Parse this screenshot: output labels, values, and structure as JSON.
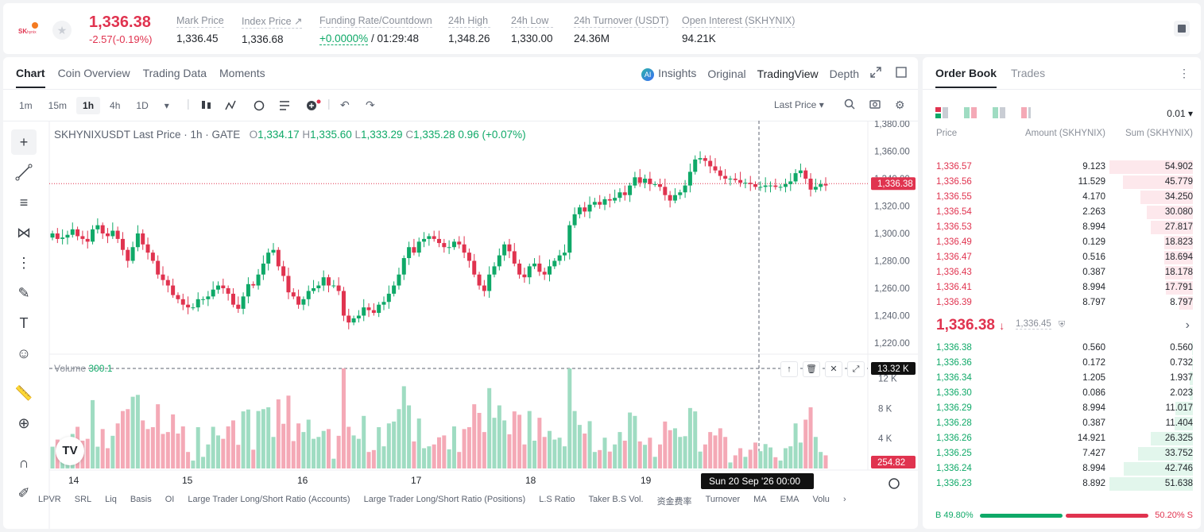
{
  "header": {
    "last_price": "1,336.38",
    "change": "-2.57(-0.19%)",
    "stats": [
      {
        "label": "Mark Price",
        "value": "1,336.45"
      },
      {
        "label": "Index Price ↗",
        "value": "1,336.68"
      },
      {
        "label": "Funding Rate/Countdown",
        "value_green": "+0.0000%",
        "value": " / 01:29:48"
      },
      {
        "label": "24h High",
        "value": "1,348.26"
      },
      {
        "label": "24h Low",
        "value": "1,330.00"
      },
      {
        "label": "24h Turnover (USDT)",
        "value": "24.36M"
      },
      {
        "label": "Open Interest (SKHYNIX)",
        "value": "94.21K"
      }
    ]
  },
  "chart_tabs": [
    "Chart",
    "Coin Overview",
    "Trading Data",
    "Moments"
  ],
  "view_tabs": {
    "insights": "Insights",
    "original": "Original",
    "tradingview": "TradingView",
    "depth": "Depth"
  },
  "timeframes": [
    "1m",
    "15m",
    "1h",
    "4h",
    "1D"
  ],
  "price_type": "Last Price",
  "legend": {
    "symbol": "SKHYNIXUSDT Last Price · 1h · GATE",
    "o": "1,334.17",
    "h": "1,335.60",
    "l": "1,333.29",
    "c": "1,335.28",
    "chg": "0.96 (+0.07%)"
  },
  "volume_legend": {
    "label": "Volume",
    "value": "300.1"
  },
  "price_axis": [
    "1,380.00",
    "1,360.00",
    "1,340.00",
    "1,320.00",
    "1,300.00",
    "1,280.00",
    "1,260.00",
    "1,240.00",
    "1,220.00"
  ],
  "volume_axis": [
    "12 K",
    "8 K",
    "4 K"
  ],
  "x_axis": [
    "14",
    "15",
    "16",
    "17",
    "18",
    "19"
  ],
  "price_badge": "1,336.38",
  "volume_badge": "13.32 K",
  "volume_last_badge": "254.82",
  "crosshair_time": "Sun 20 Sep '26   00:00",
  "bottom_indicators": [
    "LPVR",
    "SRL",
    "Liq",
    "Basis",
    "OI",
    "Large Trader Long/Short Ratio (Accounts)",
    "Large Trader Long/Short Ratio (Positions)",
    "L.S Ratio",
    "Taker B.S Vol.",
    "资金费率",
    "Turnover",
    "MA",
    "EMA",
    "Volu"
  ],
  "order_book": {
    "tabs": [
      "Order Book",
      "Trades"
    ],
    "precision": "0.01",
    "col_price": "Price",
    "col_amount": "Amount (SKHYNIX)",
    "col_sum": "Sum (SKHYNIX)",
    "asks": [
      {
        "p": "1,336.57",
        "a": "9.123",
        "s": "54.902",
        "d": 1.0
      },
      {
        "p": "1,336.56",
        "a": "11.529",
        "s": "45.779",
        "d": 0.834
      },
      {
        "p": "1,336.55",
        "a": "4.170",
        "s": "34.250",
        "d": 0.624
      },
      {
        "p": "1,336.54",
        "a": "2.263",
        "s": "30.080",
        "d": 0.548
      },
      {
        "p": "1,336.53",
        "a": "8.994",
        "s": "27.817",
        "d": 0.507
      },
      {
        "p": "1,336.49",
        "a": "0.129",
        "s": "18.823",
        "d": 0.343
      },
      {
        "p": "1,336.47",
        "a": "0.516",
        "s": "18.694",
        "d": 0.34
      },
      {
        "p": "1,336.43",
        "a": "0.387",
        "s": "18.178",
        "d": 0.331
      },
      {
        "p": "1,336.41",
        "a": "8.994",
        "s": "17.791",
        "d": 0.324
      },
      {
        "p": "1,336.39",
        "a": "8.797",
        "s": "8.797",
        "d": 0.16
      }
    ],
    "mid_price": "1,336.38",
    "mid_mark": "1,336.45",
    "bids": [
      {
        "p": "1,336.38",
        "a": "0.560",
        "s": "0.560",
        "d": 0.011
      },
      {
        "p": "1,336.36",
        "a": "0.172",
        "s": "0.732",
        "d": 0.014
      },
      {
        "p": "1,336.34",
        "a": "1.205",
        "s": "1.937",
        "d": 0.037
      },
      {
        "p": "1,336.30",
        "a": "0.086",
        "s": "2.023",
        "d": 0.039
      },
      {
        "p": "1,336.29",
        "a": "8.994",
        "s": "11.017",
        "d": 0.213
      },
      {
        "p": "1,336.28",
        "a": "0.387",
        "s": "11.404",
        "d": 0.22
      },
      {
        "p": "1,336.26",
        "a": "14.921",
        "s": "26.325",
        "d": 0.509
      },
      {
        "p": "1,336.25",
        "a": "7.427",
        "s": "33.752",
        "d": 0.653
      },
      {
        "p": "1,336.24",
        "a": "8.994",
        "s": "42.746",
        "d": 0.827
      },
      {
        "p": "1,336.23",
        "a": "8.892",
        "s": "51.638",
        "d": 1.0
      }
    ],
    "buy_ratio": "B 49.80%",
    "sell_ratio": "50.20% S",
    "buy_fraction": 0.498
  },
  "colors": {
    "up": "#0fa968",
    "down": "#e0334f",
    "up_vol": "#9fdcc2",
    "down_vol": "#f4a9b6"
  },
  "chart_data": {
    "type": "candlestick",
    "ylim": [
      1220,
      1380
    ],
    "volume_ylim": [
      0,
      13320
    ],
    "closes": [
      1300,
      1296,
      1297,
      1299,
      1303,
      1298,
      1296,
      1294,
      1303,
      1306,
      1300,
      1298,
      1302,
      1296,
      1288,
      1280,
      1290,
      1300,
      1292,
      1286,
      1280,
      1270,
      1266,
      1262,
      1255,
      1252,
      1248,
      1246,
      1246,
      1252,
      1252,
      1254,
      1259,
      1262,
      1260,
      1256,
      1248,
      1245,
      1254,
      1263,
      1262,
      1270,
      1278,
      1286,
      1288,
      1276,
      1269,
      1257,
      1254,
      1248,
      1252,
      1258,
      1260,
      1262,
      1268,
      1262,
      1262,
      1258,
      1240,
      1235,
      1238,
      1240,
      1246,
      1244,
      1242,
      1248,
      1250,
      1256,
      1262,
      1270,
      1282,
      1290,
      1286,
      1294,
      1296,
      1298,
      1296,
      1293,
      1290,
      1290,
      1294,
      1292,
      1286,
      1280,
      1270,
      1262,
      1258,
      1270,
      1276,
      1284,
      1292,
      1287,
      1278,
      1270,
      1268,
      1276,
      1278,
      1272,
      1270,
      1276,
      1280,
      1284,
      1286,
      1306,
      1314,
      1319,
      1316,
      1321,
      1323,
      1321,
      1325,
      1324,
      1326,
      1330,
      1328,
      1335,
      1341,
      1337,
      1340,
      1336,
      1336,
      1334,
      1328,
      1324,
      1328,
      1330,
      1335,
      1345,
      1354,
      1355,
      1353,
      1349,
      1346,
      1342,
      1340,
      1340,
      1339,
      1337,
      1337,
      1336,
      1334,
      1334,
      1335,
      1335,
      1334,
      1334,
      1336,
      1338,
      1344,
      1346,
      1340,
      1332,
      1334,
      1336,
      1335
    ]
  }
}
